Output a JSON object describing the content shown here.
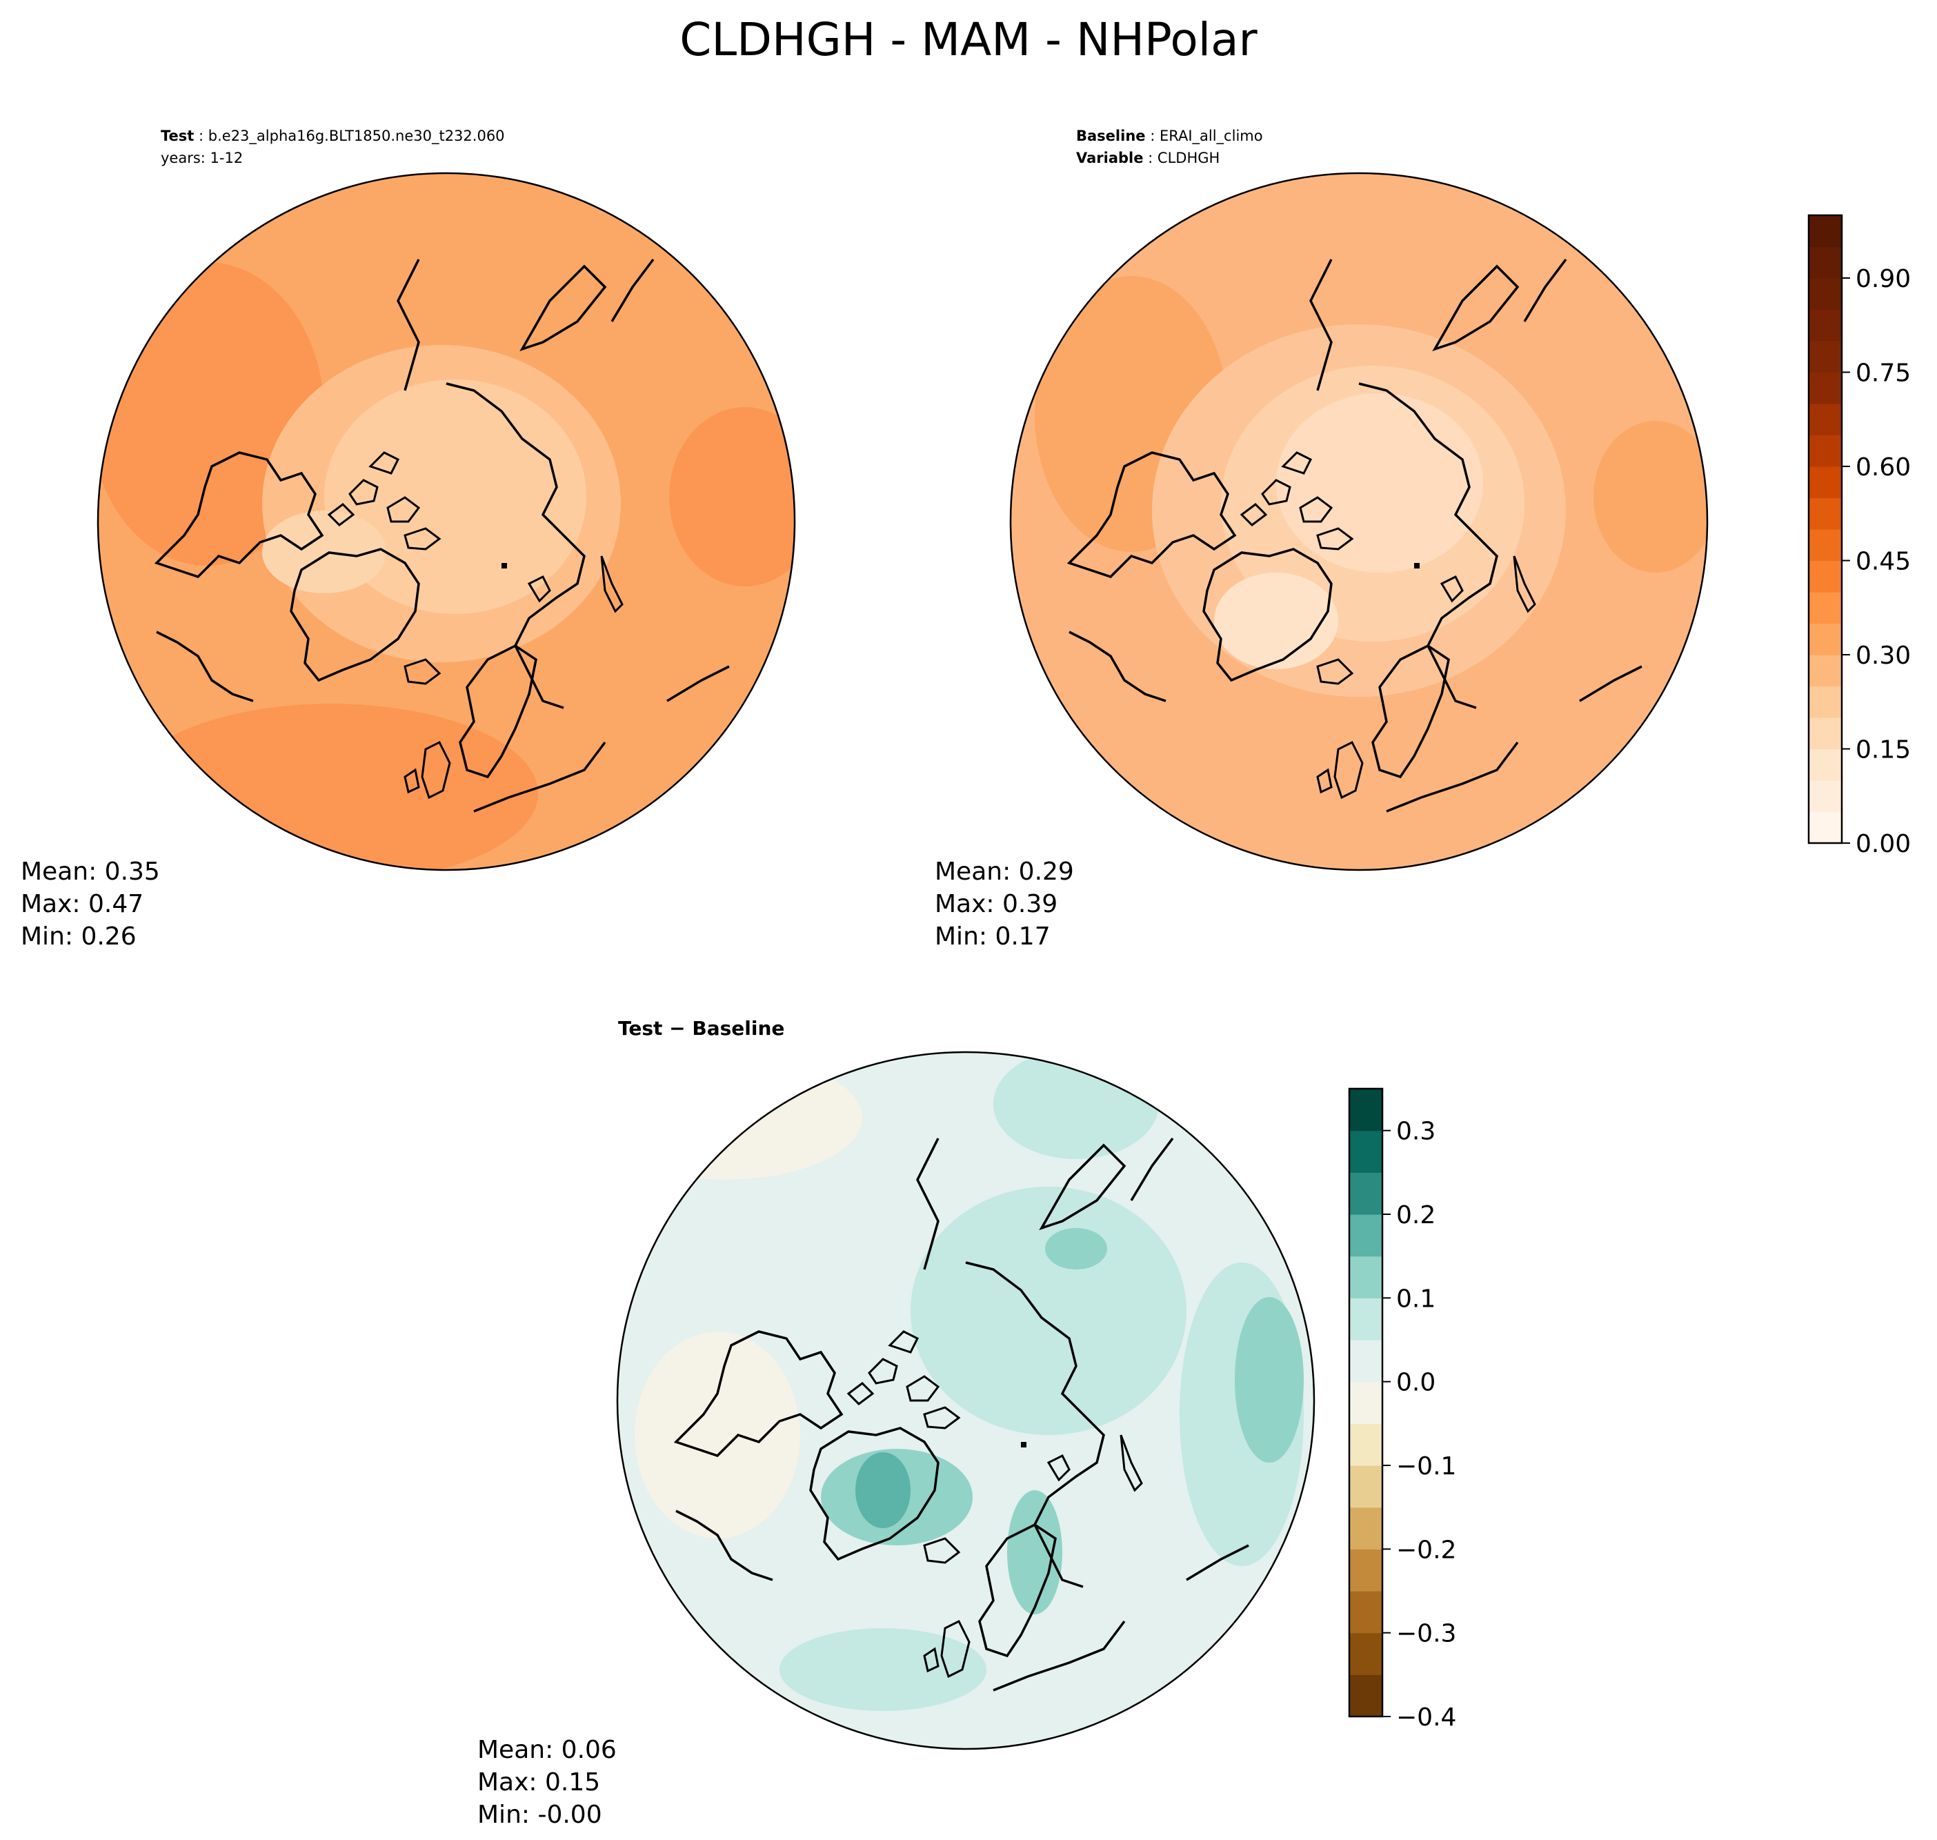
{
  "title": "CLDHGH - MAM - NHPolar",
  "test_panel": {
    "label_key": "Test",
    "label_value": "b.e23_alpha16g.BLT1850.ne30_t232.060",
    "years": "years: 1-12",
    "stats": {
      "mean": "Mean:  0.35",
      "max": "Max:  0.47",
      "min": "Min:  0.26"
    }
  },
  "baseline_panel": {
    "label_key": "Baseline",
    "label_value": "ERAI_all_climo",
    "variable_key": "Variable",
    "variable_value": "CLDHGH",
    "stats": {
      "mean": "Mean:  0.29",
      "max": "Max:  0.39",
      "min": "Min:  0.17"
    }
  },
  "diff_panel": {
    "label": "Test − Baseline",
    "stats": {
      "mean": "Mean:  0.06",
      "max": "Max:  0.15",
      "min": "Min: -0.00"
    }
  },
  "colorbar_main": {
    "ticks": [
      "0.00",
      "0.15",
      "0.30",
      "0.45",
      "0.60",
      "0.75",
      "0.90"
    ],
    "tick_values": [
      0,
      0.15,
      0.3,
      0.45,
      0.6,
      0.75,
      0.9
    ],
    "range": [
      0,
      1.0
    ],
    "levels": 20,
    "colors": [
      "#fff5eb",
      "#feeddb",
      "#fee6cb",
      "#fdd9b4",
      "#fdca99",
      "#fdb97d",
      "#fda660",
      "#fd9446",
      "#f8812f",
      "#ef6e1c",
      "#e35b0d",
      "#d14802",
      "#b83c02",
      "#a33303",
      "#8a2a04",
      "#7f2704",
      "#752304",
      "#6b2004",
      "#621d04",
      "#581903"
    ]
  },
  "colorbar_diff": {
    "ticks": [
      "−0.4",
      "−0.3",
      "−0.2",
      "−0.1",
      "0.0",
      "0.1",
      "0.2",
      "0.3"
    ],
    "tick_values": [
      -0.4,
      -0.3,
      -0.2,
      -0.1,
      0.0,
      0.1,
      0.2,
      0.3
    ],
    "range": [
      -0.4,
      0.35
    ],
    "levels": 15,
    "colors": [
      "#6b3a06",
      "#8a500d",
      "#a86a1f",
      "#c28a3a",
      "#d7ac60",
      "#e8cf91",
      "#f4e8c0",
      "#f5f2e7",
      "#e4f1ee",
      "#c4e8e2",
      "#91d3c7",
      "#5cb3a7",
      "#2c8b80",
      "#0b6c61",
      "#01483e"
    ]
  },
  "map_fill": {
    "test_base": "#fba866",
    "test_polar": "#fdcda0",
    "test_warm": "#fb9752",
    "base_base": "#fcb57e",
    "base_polar": "#fedcbd",
    "diff_base": "#e4f1ee",
    "diff_pos": "#c4e8e2",
    "diff_strong": "#91d3c7",
    "diff_max": "#5cb3a7",
    "diff_neg": "#f5f2e7"
  }
}
